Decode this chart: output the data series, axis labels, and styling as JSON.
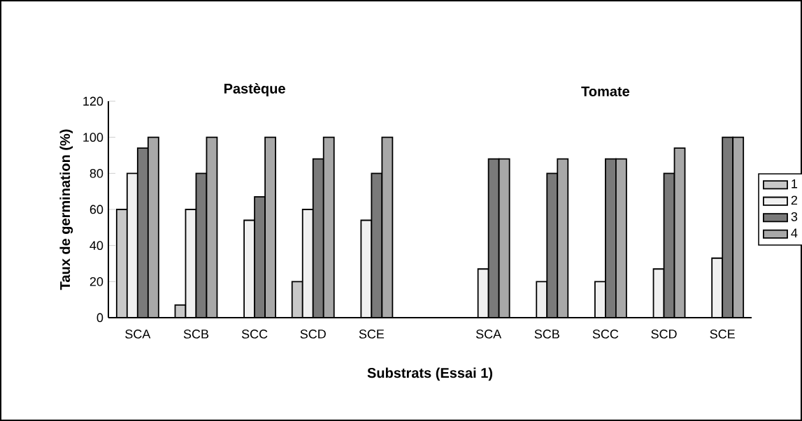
{
  "chart_data": {
    "type": "bar",
    "annotations": [
      "Pastèque",
      "Tomate"
    ],
    "xlabel": "Substrats (Essai 1)",
    "ylabel": "Taux de germination (%)",
    "categories": [
      "SCA",
      "SCB",
      "SCC",
      "SCD",
      "SCE",
      null,
      "SCA",
      "SCB",
      "SCC",
      "SCD",
      "SCE"
    ],
    "series": [
      {
        "name": "1",
        "color": "#c8c8c8",
        "values": [
          60,
          7,
          null,
          20,
          null,
          null,
          null,
          null,
          null,
          null,
          null
        ]
      },
      {
        "name": "2",
        "color": "#f0f0f0",
        "values": [
          80,
          60,
          54,
          60,
          54,
          null,
          27,
          20,
          20,
          27,
          33
        ]
      },
      {
        "name": "3",
        "color": "#7a7a7a",
        "values": [
          94,
          80,
          67,
          88,
          80,
          null,
          88,
          80,
          88,
          80,
          100
        ]
      },
      {
        "name": "4",
        "color": "#a8a8a8",
        "values": [
          100,
          100,
          100,
          100,
          100,
          null,
          88,
          88,
          88,
          94,
          100
        ]
      }
    ],
    "ylim": [
      0,
      120
    ],
    "yticks": [
      0,
      20,
      40,
      60,
      80,
      100,
      120
    ],
    "legend": "right",
    "grid": false
  }
}
